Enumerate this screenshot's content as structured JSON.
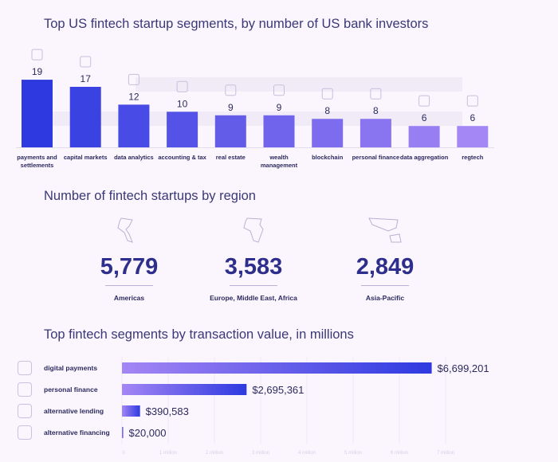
{
  "chart_data": [
    {
      "type": "bar",
      "title": "Top US fintech startup segments, by number of US bank investors",
      "categories": [
        "payments and settlements",
        "capital markets",
        "data analytics",
        "accounting & tax",
        "real estate",
        "wealth management",
        "blockchain",
        "personal finance",
        "data aggregation",
        "regtech"
      ],
      "values": [
        19,
        17,
        12,
        10,
        9,
        9,
        8,
        8,
        6,
        6
      ],
      "ylim": [
        0,
        19
      ]
    },
    {
      "type": "bar",
      "orientation": "horizontal",
      "title": "Top fintech segments by transaction value, in millions",
      "categories": [
        "digital payments",
        "personal finance",
        "alternative lending",
        "alternative financing"
      ],
      "values": [
        6699201,
        2695361,
        390583,
        20000
      ],
      "value_labels": [
        "$6,699,201",
        "$2,695,361",
        "$390,583",
        "$20,000"
      ],
      "x_ticks": [
        "0",
        "1 million",
        "2 million",
        "3 million",
        "4 million",
        "5 million",
        "6 million",
        "7 million"
      ],
      "xlim": [
        0,
        7000000
      ],
      "grid": true
    }
  ],
  "regions": {
    "title": "Number of fintech startups by region",
    "items": [
      {
        "value": "5,779",
        "label": "Americas"
      },
      {
        "value": "3,583",
        "label": "Europe, Middle East, Africa"
      },
      {
        "value": "2,849",
        "label": "Asia-Pacific"
      }
    ]
  },
  "colors": {
    "dark": "#2e3ae0",
    "light": "#a486f5",
    "text": "#2b2a5e"
  }
}
